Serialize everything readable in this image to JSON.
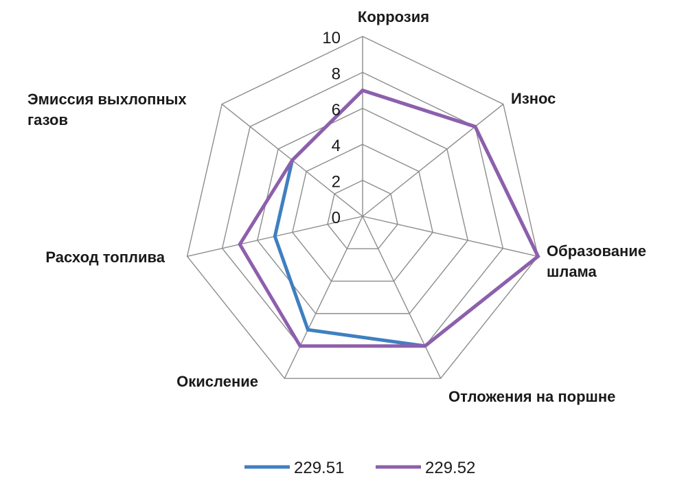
{
  "chart_data": {
    "type": "radar",
    "title": "",
    "axes": [
      "Коррозия",
      "Износ",
      "Образование шлама",
      "Отложения на поршне",
      "Окисление",
      "Расход топлива",
      "Эмиссия выхлопных газов"
    ],
    "range": [
      0,
      10
    ],
    "ticks": [
      "0",
      "2",
      "4",
      "6",
      "8",
      "10"
    ],
    "grid": true,
    "legend_position": "bottom",
    "series": [
      {
        "name": "229.51",
        "color": "#3f7fc1",
        "values": [
          7,
          8,
          10,
          8,
          7,
          5,
          5
        ]
      },
      {
        "name": "229.52",
        "color": "#8e5fac",
        "values": [
          7,
          8,
          10,
          8,
          8,
          7,
          5
        ]
      }
    ]
  }
}
